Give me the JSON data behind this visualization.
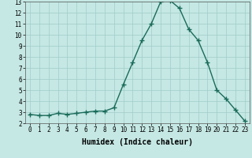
{
  "x": [
    0,
    1,
    2,
    3,
    4,
    5,
    6,
    7,
    8,
    9,
    10,
    11,
    12,
    13,
    14,
    15,
    16,
    17,
    18,
    19,
    20,
    21,
    22,
    23
  ],
  "y": [
    2.8,
    2.7,
    2.7,
    2.9,
    2.8,
    2.9,
    3.0,
    3.1,
    3.1,
    3.4,
    5.5,
    7.5,
    9.5,
    11.0,
    13.0,
    13.1,
    12.4,
    10.5,
    9.5,
    7.5,
    5.0,
    4.2,
    3.2,
    2.2
  ],
  "xlabel": "Humidex (Indice chaleur)",
  "ylim": [
    2,
    13
  ],
  "xlim_min": -0.5,
  "xlim_max": 23.5,
  "yticks": [
    2,
    3,
    4,
    5,
    6,
    7,
    8,
    9,
    10,
    11,
    12,
    13
  ],
  "xticks": [
    0,
    1,
    2,
    3,
    4,
    5,
    6,
    7,
    8,
    9,
    10,
    11,
    12,
    13,
    14,
    15,
    16,
    17,
    18,
    19,
    20,
    21,
    22,
    23
  ],
  "line_color": "#1a6b5a",
  "marker": "+",
  "marker_size": 4,
  "marker_lw": 1.0,
  "bg_color": "#c5e8e4",
  "grid_color": "#a0ccc8",
  "xlabel_fontsize": 7,
  "tick_fontsize": 5.5,
  "linewidth": 1.0
}
